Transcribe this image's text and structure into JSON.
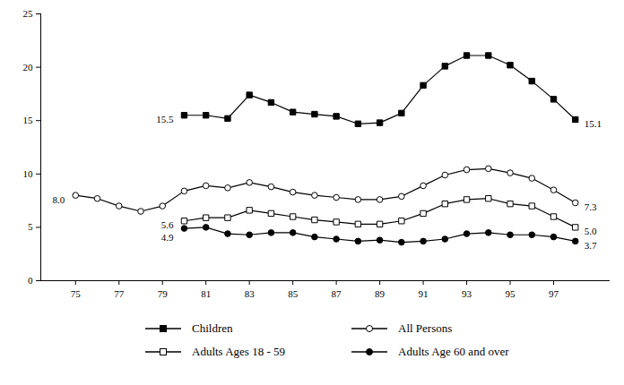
{
  "chart_data": {
    "type": "line",
    "x": [
      75,
      76,
      77,
      78,
      79,
      80,
      81,
      82,
      83,
      84,
      85,
      86,
      87,
      88,
      89,
      90,
      91,
      92,
      93,
      94,
      95,
      96,
      97,
      98
    ],
    "series": [
      {
        "name": "Children",
        "color": "#000000",
        "marker": "filled-square",
        "values": [
          null,
          null,
          null,
          null,
          null,
          15.5,
          15.5,
          15.2,
          17.4,
          16.7,
          15.8,
          15.6,
          15.4,
          14.7,
          14.8,
          15.7,
          18.3,
          20.1,
          21.1,
          21.1,
          20.2,
          18.7,
          17.0,
          15.1
        ]
      },
      {
        "name": "All Persons",
        "color": "#000000",
        "marker": "open-circle",
        "values": [
          8.0,
          7.7,
          7.0,
          6.5,
          7.0,
          8.4,
          8.9,
          8.7,
          9.2,
          8.8,
          8.3,
          8.0,
          7.8,
          7.6,
          7.6,
          7.9,
          8.9,
          9.9,
          10.4,
          10.5,
          10.1,
          9.6,
          8.5,
          7.3
        ]
      },
      {
        "name": "Adults Ages 18 - 59",
        "color": "#000000",
        "marker": "open-square",
        "values": [
          null,
          null,
          null,
          null,
          null,
          5.6,
          5.9,
          5.9,
          6.6,
          6.3,
          6.0,
          5.7,
          5.5,
          5.3,
          5.3,
          5.6,
          6.3,
          7.2,
          7.6,
          7.7,
          7.2,
          7.0,
          6.0,
          5.0
        ]
      },
      {
        "name": "Adults Age 60 and over",
        "color": "#000000",
        "marker": "filled-circle",
        "values": [
          null,
          null,
          null,
          null,
          null,
          4.9,
          5.0,
          4.4,
          4.3,
          4.5,
          4.5,
          4.1,
          3.9,
          3.7,
          3.8,
          3.6,
          3.7,
          3.9,
          4.4,
          4.5,
          4.3,
          4.3,
          4.1,
          3.7
        ]
      }
    ],
    "annotations": [
      {
        "x": 80,
        "y": 15.5,
        "text": "15.5"
      },
      {
        "x": 98,
        "y": 15.1,
        "text": "15.1"
      },
      {
        "x": 75,
        "y": 8.0,
        "text": "8.0"
      },
      {
        "x": 98,
        "y": 7.3,
        "text": "7.3"
      },
      {
        "x": 80,
        "y": 5.6,
        "text": "5.6"
      },
      {
        "x": 98,
        "y": 5.0,
        "text": "5.0"
      },
      {
        "x": 80,
        "y": 4.9,
        "text": "4.9"
      },
      {
        "x": 98,
        "y": 3.7,
        "text": "3.7"
      }
    ],
    "xlim": [
      73.4,
      99.6
    ],
    "xticks": [
      75,
      77,
      79,
      81,
      83,
      85,
      87,
      89,
      91,
      93,
      95,
      97
    ],
    "ylim": [
      0,
      25
    ],
    "yticks": [
      0,
      5,
      10,
      15,
      20,
      25
    ],
    "grid": false,
    "legend": "bottom"
  }
}
